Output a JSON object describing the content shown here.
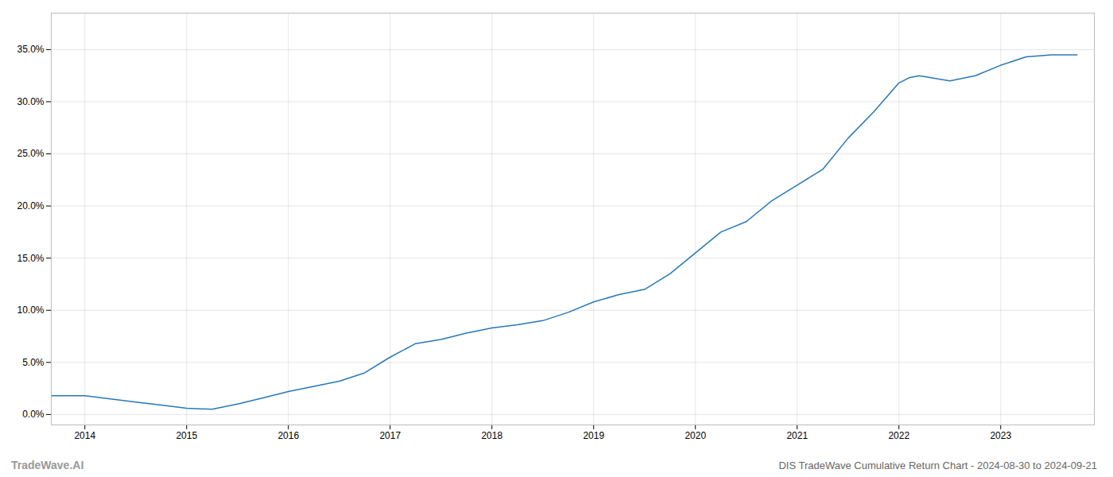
{
  "chart_data": {
    "type": "line",
    "title": "DIS TradeWave Cumulative Return Chart - 2024-08-30 to 2024-09-21",
    "annotations": [
      "TradeWave.AI"
    ],
    "x": [
      2013.67,
      2014.0,
      2014.25,
      2014.5,
      2014.75,
      2015.0,
      2015.25,
      2015.5,
      2015.75,
      2016.0,
      2016.25,
      2016.5,
      2016.75,
      2017.0,
      2017.25,
      2017.5,
      2017.75,
      2018.0,
      2018.25,
      2018.5,
      2018.75,
      2019.0,
      2019.25,
      2019.5,
      2019.75,
      2020.0,
      2020.25,
      2020.5,
      2020.75,
      2021.0,
      2021.25,
      2021.5,
      2021.75,
      2022.0,
      2022.1,
      2022.2,
      2022.5,
      2022.75,
      2023.0,
      2023.25,
      2023.5,
      2023.75
    ],
    "values": [
      1.8,
      1.8,
      1.5,
      1.2,
      0.9,
      0.6,
      0.5,
      1.0,
      1.6,
      2.2,
      2.7,
      3.2,
      4.0,
      5.5,
      6.8,
      7.2,
      7.8,
      8.3,
      8.6,
      9.0,
      9.8,
      10.8,
      11.5,
      12.0,
      13.5,
      15.5,
      17.5,
      18.5,
      20.5,
      22.0,
      23.5,
      26.5,
      29.0,
      31.8,
      32.3,
      32.5,
      32.0,
      32.5,
      33.5,
      34.3,
      34.5,
      34.5
    ],
    "color": "#2878b5",
    "xlim": [
      2013.67,
      2023.92
    ],
    "xticks": [
      2014,
      2015,
      2016,
      2017,
      2018,
      2019,
      2020,
      2021,
      2022,
      2023
    ],
    "ylim": [
      -1.0,
      38.5
    ],
    "yticks": [
      {
        "value": 0.0,
        "label": "0.0%"
      },
      {
        "value": 5.0,
        "label": "5.0%"
      },
      {
        "value": 10.0,
        "label": "10.0%"
      },
      {
        "value": 15.0,
        "label": "15.0%"
      },
      {
        "value": 20.0,
        "label": "20.0%"
      },
      {
        "value": 25.0,
        "label": "25.0%"
      },
      {
        "value": 30.0,
        "label": "30.0%"
      },
      {
        "value": 35.0,
        "label": "35.0%"
      }
    ],
    "grid": true
  }
}
